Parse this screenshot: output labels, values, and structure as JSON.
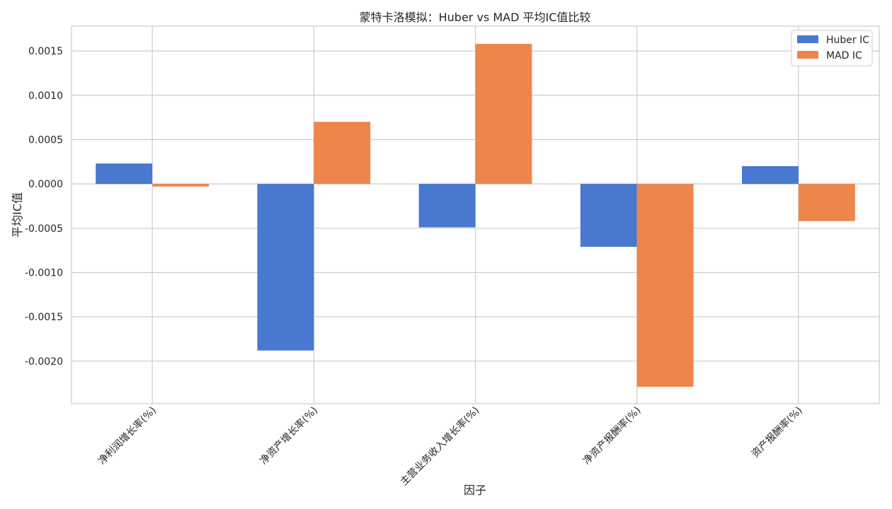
{
  "chart_data": {
    "type": "bar",
    "title": "蒙特卡洛模拟：Huber vs MAD 平均IC值比较",
    "xlabel": "因子",
    "ylabel": "平均IC值",
    "categories": [
      "净利润增长率(%)",
      "净资产增长率(%)",
      "主营业务收入增长率(%)",
      "净资产报酬率(%)",
      "资产报酬率(%)"
    ],
    "series": [
      {
        "name": "Huber IC",
        "color": "#4878d0",
        "values": [
          0.00023,
          -0.00188,
          -0.00049,
          -0.00071,
          0.0002
        ]
      },
      {
        "name": "MAD IC",
        "color": "#ee854a",
        "values": [
          -3e-05,
          0.0007,
          0.00158,
          -0.00229,
          -0.00042
        ]
      }
    ],
    "ylim": [
      -0.00248,
      0.00178
    ],
    "yticks": [
      0.0015,
      0.001,
      0.0005,
      0.0,
      -0.0005,
      -0.001,
      -0.0015,
      -0.002
    ],
    "ytick_labels": [
      "0.0015",
      "0.0010",
      "0.0005",
      "0.0000",
      "-0.0005",
      "-0.0010",
      "-0.0015",
      "-0.0020"
    ],
    "grid": true,
    "legend_position": "top-right"
  }
}
